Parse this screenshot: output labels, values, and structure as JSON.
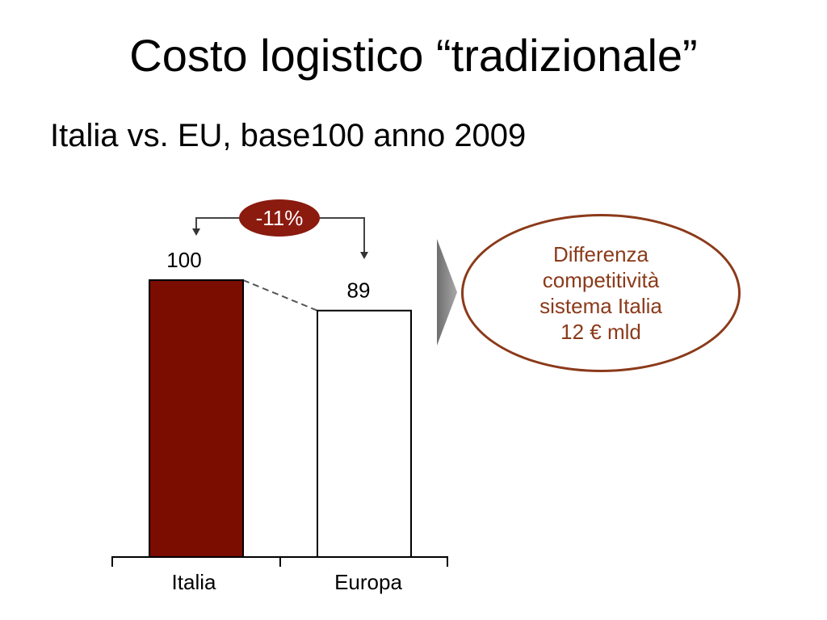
{
  "slide": {
    "title": "Costo logistico “tradizionale”",
    "subtitle": "Italia vs. EU, base100 anno 2009"
  },
  "chart_data": {
    "type": "bar",
    "title": "",
    "xlabel": "",
    "ylabel": "",
    "categories": [
      "Italia",
      "Europa"
    ],
    "values": [
      100,
      89
    ],
    "data_labels": [
      "100",
      "89"
    ],
    "ylim": [
      0,
      100
    ],
    "grid": false,
    "colors": [
      "#7b0c00",
      "#ffffff"
    ],
    "annotation": "-11%",
    "annotation_color": "#8b1a0f"
  },
  "callout": {
    "lines": [
      "Differenza",
      "competitività",
      "sistema Italia",
      "12 € mld"
    ],
    "border_color": "#8b3a1a",
    "text_color": "#8b3a1a"
  },
  "colors": {
    "arrow_shape": "#8a8a8a",
    "connector": "#555555"
  }
}
